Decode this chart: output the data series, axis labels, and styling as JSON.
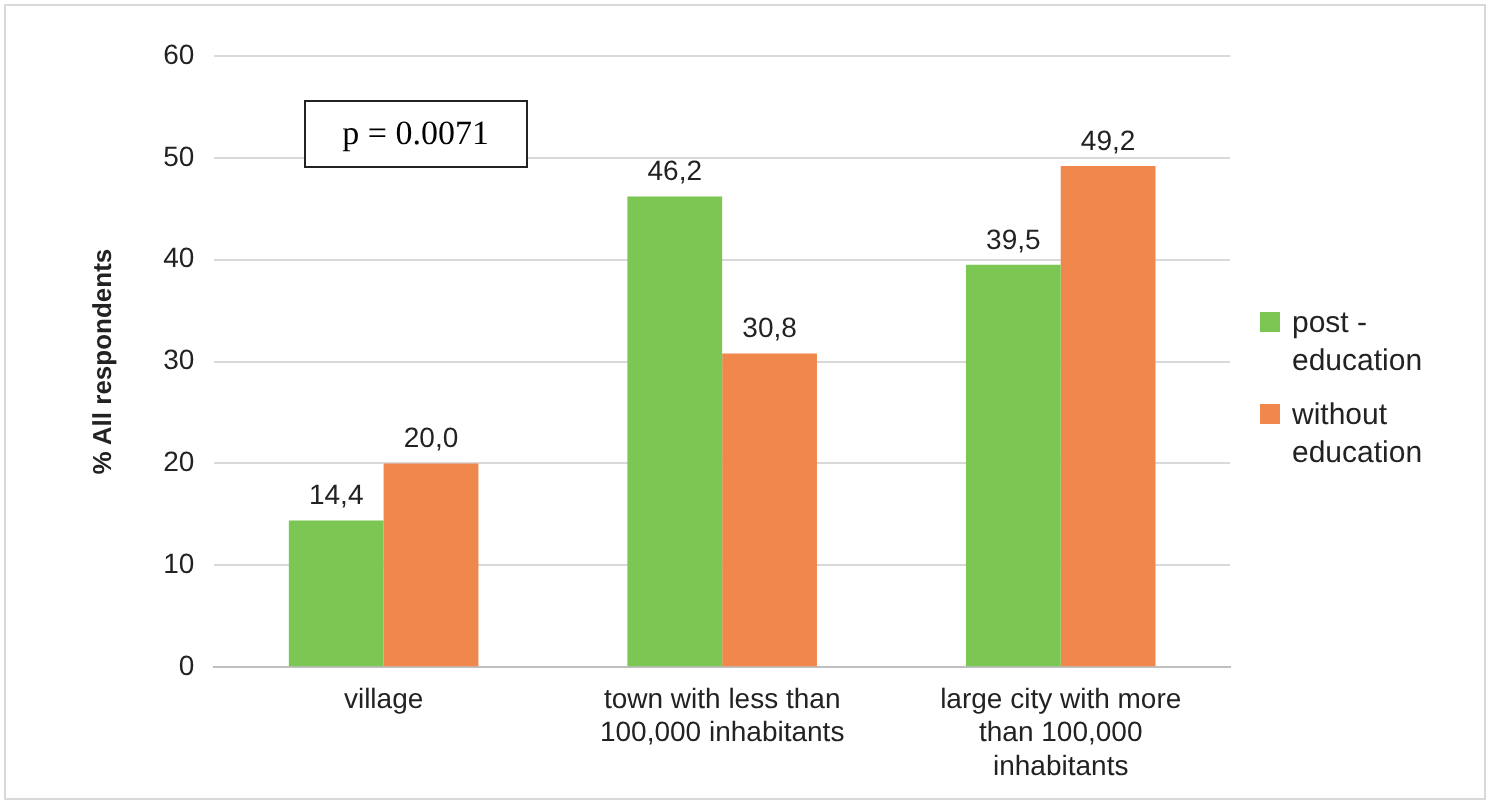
{
  "chart_data": {
    "type": "bar",
    "ylabel": "% All respondents",
    "categories": [
      "village",
      "town with less than 100,000 inhabitants",
      "large city with more than 100,000 inhabitants"
    ],
    "series": [
      {
        "name": "post - education",
        "color": "#7cc653",
        "values": [
          14.4,
          46.2,
          39.5
        ],
        "value_labels": [
          "14,4",
          "46,2",
          "39,5"
        ]
      },
      {
        "name": "without education",
        "color": "#f0874c",
        "values": [
          20.0,
          30.8,
          49.2
        ],
        "value_labels": [
          "20,0",
          "30,8",
          "49,2"
        ]
      }
    ],
    "ylim": [
      0,
      60
    ],
    "yticks": [
      0,
      10,
      20,
      30,
      40,
      50,
      60
    ],
    "grid": "y",
    "legend": "right",
    "annotations": [
      "p = 0.0071"
    ]
  }
}
